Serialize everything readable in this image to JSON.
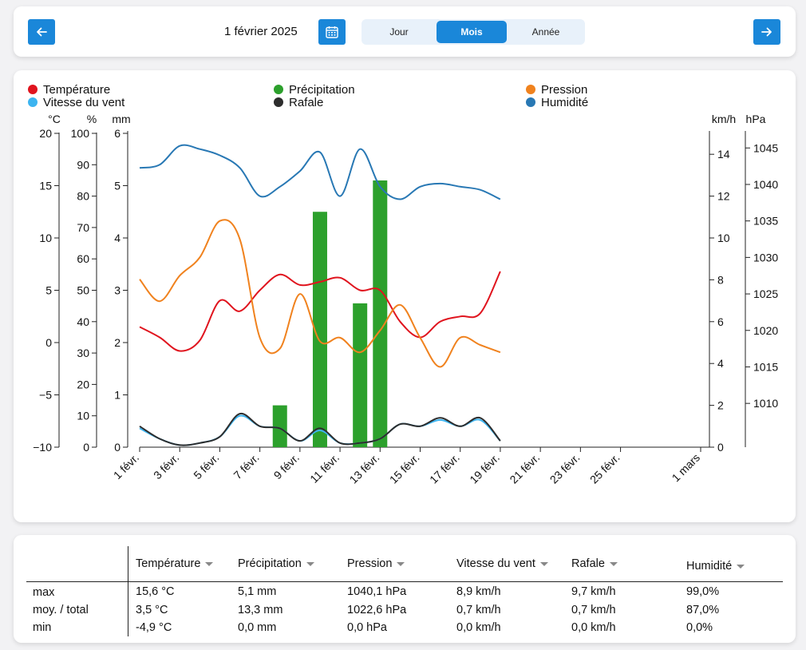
{
  "topbar": {
    "date_label": "1 février 2025",
    "tabs": [
      "Jour",
      "Mois",
      "Année"
    ],
    "active_tab": "Mois"
  },
  "colors": {
    "accent": "#1a87d9",
    "temperature": "#e0141e",
    "precipitation": "#2ca02c",
    "pressure": "#f0821e",
    "wind_speed": "#3cb4f0",
    "gust": "#2d2d2d",
    "humidity": "#2878b4"
  },
  "chart_data": {
    "type": "line",
    "legend": [
      {
        "label": "Température",
        "color": "#e0141e"
      },
      {
        "label": "Précipitation",
        "color": "#2ca02c"
      },
      {
        "label": "Pression",
        "color": "#f0821e"
      },
      {
        "label": "Vitesse du vent",
        "color": "#3cb4f0"
      },
      {
        "label": "Rafale",
        "color": "#2d2d2d"
      },
      {
        "label": "Humidité",
        "color": "#2878b4"
      }
    ],
    "legend_position": "top",
    "x_tick_labels": [
      "1 févr.",
      "3 févr.",
      "5 févr.",
      "7 févr.",
      "9 févr.",
      "11 févr.",
      "13 févr.",
      "15 févr.",
      "17 févr.",
      "19 févr.",
      "21 févr.",
      "23 févr.",
      "25 févr.",
      "1 mars"
    ],
    "x_tick_days": [
      1,
      3,
      5,
      7,
      9,
      11,
      13,
      15,
      17,
      19,
      21,
      23,
      25,
      29
    ],
    "x_range_days": [
      1,
      29
    ],
    "axes": {
      "temperature": {
        "unit": "°C",
        "range": [
          -10,
          20
        ],
        "ticks": [
          -10,
          -5,
          0,
          5,
          10,
          15,
          20
        ],
        "tick_labels": [
          "−10",
          "−5",
          "0",
          "5",
          "10",
          "15",
          "20"
        ]
      },
      "humidity": {
        "unit": "%",
        "range": [
          0,
          100
        ],
        "ticks": [
          0,
          10,
          20,
          30,
          40,
          50,
          60,
          70,
          80,
          90,
          100
        ]
      },
      "precipitation": {
        "unit": "mm",
        "range": [
          0,
          6
        ],
        "ticks": [
          0,
          1,
          2,
          3,
          4,
          5,
          6
        ]
      },
      "wind": {
        "unit": "km/h",
        "range": [
          0,
          15
        ],
        "ticks": [
          0,
          2,
          4,
          6,
          8,
          10,
          12,
          14
        ]
      },
      "pressure": {
        "unit": "hPa",
        "range": [
          1004,
          1047
        ],
        "ticks": [
          1010,
          1015,
          1020,
          1025,
          1030,
          1035,
          1040,
          1045
        ]
      }
    },
    "series": [
      {
        "name": "Température",
        "axis": "temperature",
        "color": "#e0141e",
        "x": [
          1,
          2,
          3,
          4,
          5,
          6,
          7,
          8,
          9,
          10,
          11,
          12,
          13,
          14,
          15,
          16,
          17,
          18,
          19
        ],
        "y": [
          1.5,
          0.5,
          -0.8,
          0.2,
          4.0,
          3.0,
          5.0,
          6.5,
          5.5,
          5.8,
          6.2,
          5.0,
          5.0,
          2.0,
          0.5,
          2.0,
          2.5,
          2.8,
          6.8
        ]
      },
      {
        "name": "Pression",
        "axis": "pressure",
        "color": "#f0821e",
        "x": [
          1,
          2,
          3,
          4,
          5,
          6,
          7,
          8,
          9,
          10,
          11,
          12,
          13,
          14,
          15,
          16,
          17,
          18,
          19
        ],
        "y": [
          1027,
          1024,
          1027.5,
          1030,
          1035,
          1032.5,
          1019,
          1017.5,
          1025,
          1018.5,
          1019,
          1017,
          1020,
          1023.5,
          1019,
          1015,
          1019,
          1018,
          1017
        ]
      },
      {
        "name": "Humidité",
        "axis": "humidity",
        "color": "#2878b4",
        "x": [
          1,
          2,
          3,
          4,
          5,
          6,
          7,
          8,
          9,
          10,
          11,
          12,
          13,
          14,
          15,
          16,
          17,
          18,
          19
        ],
        "y": [
          89,
          90,
          96,
          95,
          93,
          89,
          80,
          83,
          88,
          94,
          80,
          95,
          83,
          79,
          83,
          84,
          83,
          82,
          79
        ]
      },
      {
        "name": "Vitesse du vent",
        "axis": "wind",
        "color": "#3cb4f0",
        "x": [
          1,
          2,
          3,
          4,
          5,
          6,
          7,
          8,
          9,
          10,
          11,
          12,
          13,
          14,
          15,
          16,
          17,
          18,
          19
        ],
        "y": [
          0.9,
          0.4,
          0.1,
          0.2,
          0.5,
          1.5,
          1.0,
          0.9,
          0.3,
          0.8,
          0.2,
          0.2,
          0.4,
          1.1,
          1.0,
          1.3,
          1.0,
          1.3,
          0.3
        ]
      },
      {
        "name": "Rafale",
        "axis": "wind",
        "color": "#2d2d2d",
        "x": [
          1,
          2,
          3,
          4,
          5,
          6,
          7,
          8,
          9,
          10,
          11,
          12,
          13,
          14,
          15,
          16,
          17,
          18,
          19
        ],
        "y": [
          1.0,
          0.4,
          0.1,
          0.2,
          0.5,
          1.6,
          1.0,
          0.9,
          0.3,
          0.9,
          0.2,
          0.2,
          0.4,
          1.1,
          1.0,
          1.4,
          1.0,
          1.4,
          0.3
        ]
      },
      {
        "name": "Précipitation",
        "axis": "precipitation",
        "color": "#2ca02c",
        "type": "bar",
        "x": [
          8,
          10,
          12,
          13
        ],
        "y": [
          0.8,
          4.5,
          2.75,
          5.1
        ]
      }
    ]
  },
  "stats_table": {
    "headers": [
      "Température",
      "Précipitation",
      "Pression",
      "Vitesse du vent",
      "Rafale",
      "Humidité"
    ],
    "rows": [
      {
        "label": "max",
        "values": [
          "15,6 °C",
          "5,1 mm",
          "1040,1 hPa",
          "8,9 km/h",
          "9,7 km/h",
          "99,0%"
        ]
      },
      {
        "label": "moy. / total",
        "values": [
          "3,5 °C",
          "13,3 mm",
          "1022,6 hPa",
          "0,7 km/h",
          "0,7 km/h",
          "87,0%"
        ]
      },
      {
        "label": "min",
        "values": [
          "-4,9 °C",
          "0,0 mm",
          "0,0 hPa",
          "0,0 km/h",
          "0,0 km/h",
          "0,0%"
        ]
      }
    ]
  }
}
